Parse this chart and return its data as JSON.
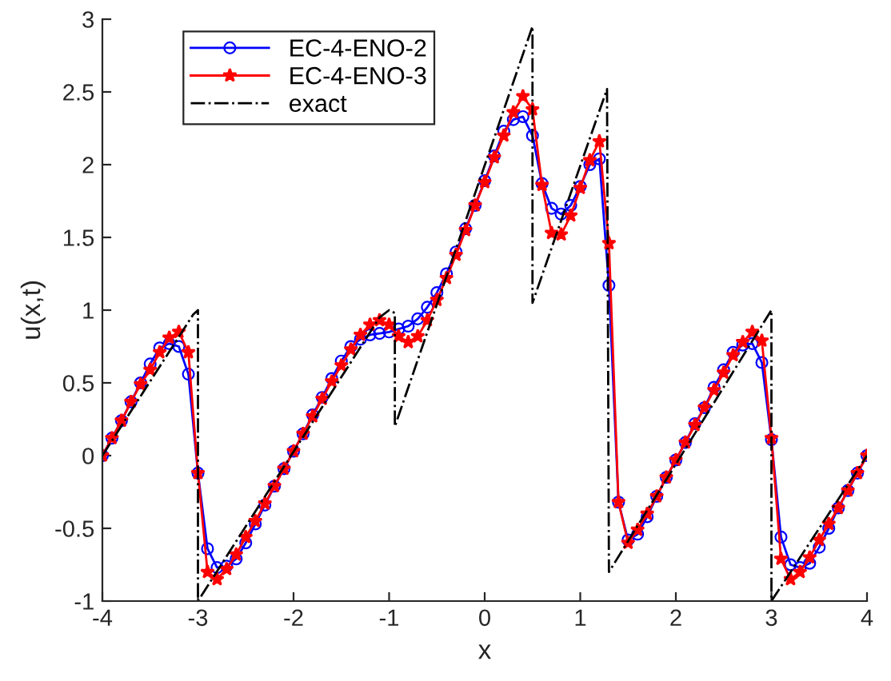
{
  "chart_data": {
    "type": "line",
    "xlabel": "x",
    "ylabel": "u(x,t)",
    "xlim": [
      -4,
      4
    ],
    "ylim": [
      -1,
      3
    ],
    "xticks": [
      -4,
      -3,
      -2,
      -1,
      0,
      1,
      2,
      3,
      4
    ],
    "yticks": [
      -1,
      -0.5,
      0,
      0.5,
      1,
      1.5,
      2,
      2.5,
      3
    ],
    "grid": false,
    "legend": "top left",
    "x": [
      -4,
      -3.9,
      -3.8,
      -3.7,
      -3.6,
      -3.5,
      -3.4,
      -3.3,
      -3.2,
      -3.1,
      -3,
      -2.9,
      -2.8,
      -2.7,
      -2.6,
      -2.5,
      -2.4,
      -2.3,
      -2.2,
      -2.1,
      -2,
      -1.9,
      -1.8,
      -1.7,
      -1.6,
      -1.5,
      -1.4,
      -1.3,
      -1.2,
      -1.1,
      -1,
      -0.9,
      -0.8,
      -0.7,
      -0.6,
      -0.5,
      -0.4,
      -0.3,
      -0.2,
      -0.1,
      0,
      0.1,
      0.2,
      0.3,
      0.4,
      0.5,
      0.6,
      0.7,
      0.8,
      0.9,
      1,
      1.1,
      1.2,
      1.3,
      1.4,
      1.5,
      1.6,
      1.7,
      1.8,
      1.9,
      2,
      2.1,
      2.2,
      2.3,
      2.4,
      2.5,
      2.6,
      2.7,
      2.8,
      2.9,
      3,
      3.1,
      3.2,
      3.3,
      3.4,
      3.5,
      3.6,
      3.7,
      3.8,
      3.9,
      4
    ],
    "series": [
      {
        "name": "EC-4-ENO-2",
        "color": "#0000ff",
        "marker": "circle",
        "line_style": "solid",
        "values": [
          0,
          0.12,
          0.24,
          0.37,
          0.5,
          0.63,
          0.74,
          0.77,
          0.75,
          0.56,
          -0.12,
          -0.64,
          -0.77,
          -0.76,
          -0.71,
          -0.6,
          -0.47,
          -0.34,
          -0.21,
          -0.09,
          0.03,
          0.15,
          0.28,
          0.4,
          0.53,
          0.65,
          0.75,
          0.8,
          0.83,
          0.84,
          0.85,
          0.87,
          0.89,
          0.94,
          1.02,
          1.12,
          1.25,
          1.4,
          1.56,
          1.72,
          1.89,
          2.06,
          2.23,
          2.31,
          2.33,
          2.2,
          1.87,
          1.7,
          1.66,
          1.72,
          1.85,
          2.0,
          2.04,
          1.17,
          -0.32,
          -0.58,
          -0.54,
          -0.42,
          -0.28,
          -0.15,
          -0.03,
          0.09,
          0.22,
          0.33,
          0.47,
          0.59,
          0.71,
          0.76,
          0.77,
          0.64,
          0.11,
          -0.56,
          -0.75,
          -0.77,
          -0.74,
          -0.63,
          -0.5,
          -0.36,
          -0.24,
          -0.12,
          0.0
        ]
      },
      {
        "name": "EC-4-ENO-3",
        "color": "#ff0000",
        "marker": "star",
        "line_style": "solid",
        "values": [
          0,
          0.12,
          0.24,
          0.37,
          0.49,
          0.59,
          0.71,
          0.81,
          0.85,
          0.71,
          -0.12,
          -0.8,
          -0.85,
          -0.78,
          -0.68,
          -0.56,
          -0.45,
          -0.33,
          -0.21,
          -0.09,
          0.03,
          0.15,
          0.27,
          0.39,
          0.51,
          0.62,
          0.73,
          0.83,
          0.9,
          0.93,
          0.9,
          0.82,
          0.78,
          0.82,
          0.93,
          1.07,
          1.22,
          1.38,
          1.55,
          1.72,
          1.88,
          2.05,
          2.2,
          2.36,
          2.47,
          2.38,
          1.86,
          1.53,
          1.52,
          1.65,
          1.84,
          2.03,
          2.16,
          1.46,
          -0.32,
          -0.6,
          -0.51,
          -0.4,
          -0.28,
          -0.15,
          -0.03,
          0.09,
          0.21,
          0.33,
          0.45,
          0.57,
          0.69,
          0.78,
          0.85,
          0.79,
          0.12,
          -0.71,
          -0.85,
          -0.8,
          -0.7,
          -0.58,
          -0.47,
          -0.36,
          -0.24,
          -0.12,
          0.0
        ]
      },
      {
        "name": "exact",
        "color": "#000000",
        "marker": "none",
        "line_style": "dashdot",
        "x": [
          -4,
          -3.05,
          -3,
          -3,
          -1.1,
          -1,
          -0.94,
          -0.94,
          0.5,
          0.5,
          1.28,
          1.3,
          3,
          3,
          4
        ],
        "values": [
          0,
          0.97,
          1.0,
          -1.0,
          0.95,
          1.0,
          0.98,
          0.2,
          2.95,
          1.05,
          2.52,
          -0.8,
          1.0,
          -1.0,
          0
        ]
      }
    ]
  }
}
